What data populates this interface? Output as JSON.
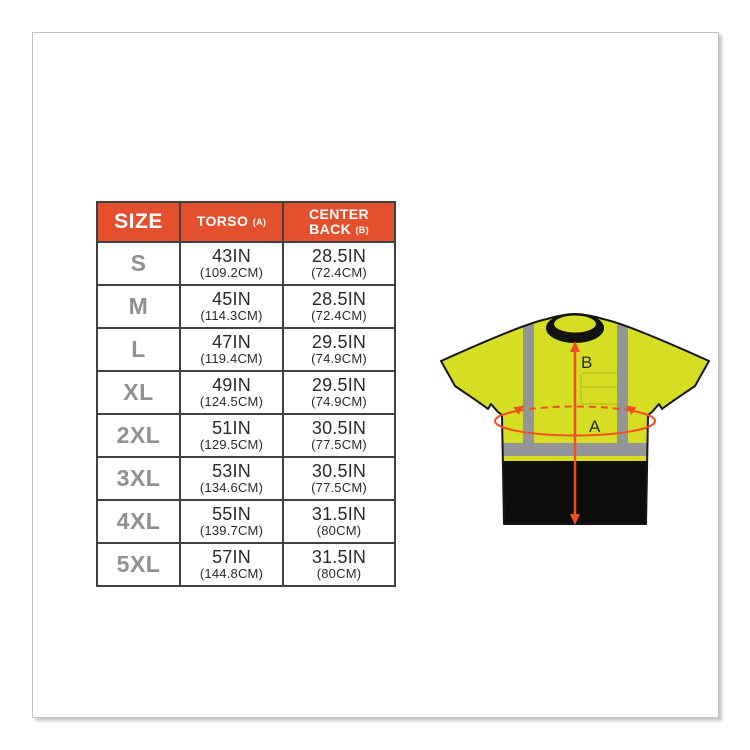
{
  "table": {
    "header": {
      "size_label": "SIZE",
      "torso_label": "TORSO",
      "torso_sub": "(A)",
      "back_line1": "CENTER",
      "back_line2": "BACK",
      "back_sub": "(B)"
    },
    "rows": [
      {
        "size": "S",
        "torso_in": "43IN",
        "torso_cm": "(109.2CM)",
        "back_in": "28.5IN",
        "back_cm": "(72.4CM)"
      },
      {
        "size": "M",
        "torso_in": "45IN",
        "torso_cm": "(114.3CM)",
        "back_in": "28.5IN",
        "back_cm": "(72.4CM)"
      },
      {
        "size": "L",
        "torso_in": "47IN",
        "torso_cm": "(119.4CM)",
        "back_in": "29.5IN",
        "back_cm": "(74.9CM)"
      },
      {
        "size": "XL",
        "torso_in": "49IN",
        "torso_cm": "(124.5CM)",
        "back_in": "29.5IN",
        "back_cm": "(74.9CM)"
      },
      {
        "size": "2XL",
        "torso_in": "51IN",
        "torso_cm": "(129.5CM)",
        "back_in": "30.5IN",
        "back_cm": "(77.5CM)"
      },
      {
        "size": "3XL",
        "torso_in": "53IN",
        "torso_cm": "(134.6CM)",
        "back_in": "30.5IN",
        "back_cm": "(77.5CM)"
      },
      {
        "size": "4XL",
        "torso_in": "55IN",
        "torso_cm": "(139.7CM)",
        "back_in": "31.5IN",
        "back_cm": "(80CM)"
      },
      {
        "size": "5XL",
        "torso_in": "57IN",
        "torso_cm": "(144.8CM)",
        "back_in": "31.5IN",
        "back_cm": "(80CM)"
      }
    ]
  },
  "diagram": {
    "labels": {
      "torso": "A",
      "center_back": "B"
    }
  },
  "colors": {
    "header_orange": "#e4502e",
    "size_gray": "#8e9194",
    "table_border": "#414042",
    "text_dark": "#2b2a29",
    "hi_vis_lime": "#d6de23",
    "reflective_gray": "#939598",
    "shirt_black": "#0d0d0d",
    "arrow_orange": "#f04e23",
    "frame_border": "#c2c2c2"
  }
}
